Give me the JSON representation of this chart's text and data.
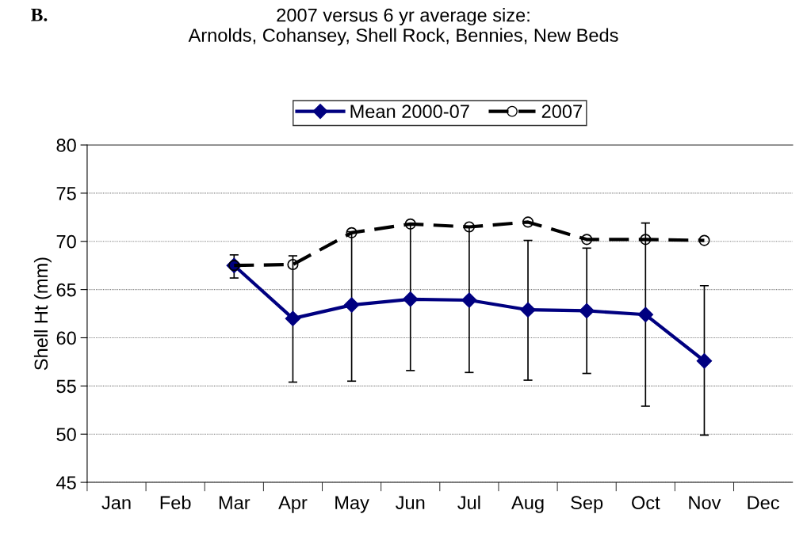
{
  "chart_data": {
    "type": "line",
    "title": "2007 versus 6 yr average size:\nArnolds, Cohansey, Shell Rock, Bennies, New Beds",
    "ylabel": "Shell Ht (mm)",
    "annotations": [
      "B."
    ],
    "categories": [
      "Jan",
      "Feb",
      "Mar",
      "Apr",
      "May",
      "Jun",
      "Jul",
      "Aug",
      "Sep",
      "Oct",
      "Nov",
      "Dec"
    ],
    "series": [
      {
        "name": "Mean 2000-07",
        "color": "#000080",
        "marker": "diamond",
        "line_style": "solid",
        "values": [
          null,
          null,
          67.5,
          62.0,
          63.4,
          64.0,
          63.9,
          62.9,
          62.8,
          62.4,
          57.6,
          null
        ],
        "errors": [
          null,
          null,
          [
            66.2,
            68.6
          ],
          [
            55.4,
            68.5
          ],
          [
            55.5,
            71.0
          ],
          [
            56.6,
            71.7
          ],
          [
            56.4,
            71.5
          ],
          [
            55.6,
            70.1
          ],
          [
            56.3,
            69.3
          ],
          [
            52.9,
            71.9
          ],
          [
            49.9,
            65.4
          ],
          null
        ]
      },
      {
        "name": "2007",
        "color": "#000000",
        "marker": "circle",
        "line_style": "dashed",
        "values": [
          null,
          null,
          67.5,
          67.6,
          70.9,
          71.8,
          71.5,
          72.0,
          70.2,
          70.2,
          70.1,
          null
        ]
      }
    ],
    "ylim": [
      45,
      80
    ],
    "yticks": [
      45,
      50,
      55,
      60,
      65,
      70,
      75,
      80
    ],
    "grid": "y",
    "legend": "top"
  }
}
